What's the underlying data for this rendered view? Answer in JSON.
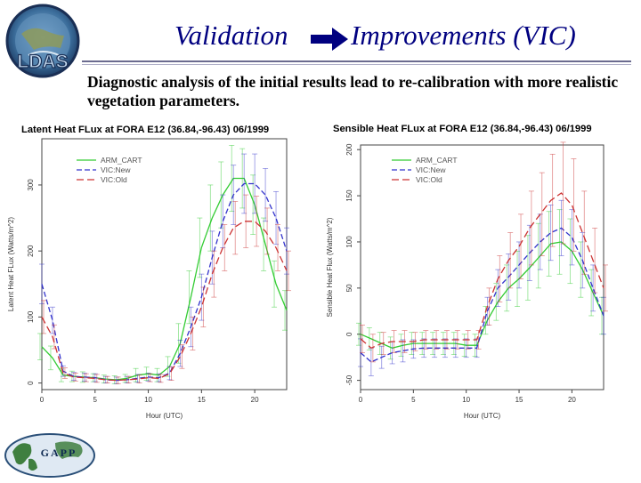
{
  "slide": {
    "title_left": "Validation",
    "title_right": "Improvements (VIC)",
    "subtitle": "Diagnostic analysis of the initial results lead to re-calibration with more realistic vegetation parameters.",
    "logo_ldas_text": "LDAS",
    "logo_gapp_text": "GAPP",
    "colors": {
      "title": "#000080",
      "rule": "#6b6b8f"
    }
  },
  "chart_data": [
    {
      "type": "line",
      "title": "Latent Heat FLux at FORA E12 (36.84,-96.43) 06/1999",
      "xlabel": "Hour (UTC)",
      "ylabel": "Latent Heat FLux (Watts/m^2)",
      "xlim": [
        0,
        23
      ],
      "ylim": [
        -10,
        370
      ],
      "xticks": [
        0,
        5,
        10,
        15,
        20
      ],
      "yticks": [
        0,
        100,
        200,
        300
      ],
      "legend": [
        "ARM_CART",
        "VIC:New",
        "VIC:Old"
      ],
      "x": [
        0,
        1,
        2,
        3,
        4,
        5,
        6,
        7,
        8,
        9,
        10,
        11,
        12,
        13,
        14,
        15,
        16,
        17,
        18,
        19,
        20,
        21,
        22,
        23
      ],
      "series": [
        {
          "name": "ARM_CART",
          "color": "#33cc33",
          "dash": "",
          "values": [
            55,
            38,
            12,
            10,
            9,
            8,
            6,
            5,
            7,
            12,
            14,
            12,
            25,
            60,
            130,
            205,
            250,
            285,
            310,
            310,
            270,
            210,
            150,
            110
          ],
          "err": [
            20,
            18,
            10,
            8,
            8,
            6,
            6,
            6,
            6,
            10,
            10,
            10,
            15,
            30,
            40,
            45,
            50,
            50,
            50,
            45,
            45,
            40,
            35,
            30
          ]
        },
        {
          "name": "VIC:New",
          "color": "#3333cc",
          "dash": "6,3",
          "values": [
            150,
            95,
            18,
            10,
            9,
            8,
            5,
            4,
            5,
            7,
            9,
            8,
            15,
            45,
            85,
            130,
            190,
            245,
            285,
            302,
            302,
            285,
            250,
            200
          ],
          "err": [
            30,
            20,
            8,
            6,
            6,
            6,
            5,
            5,
            5,
            6,
            6,
            6,
            10,
            20,
            30,
            35,
            40,
            40,
            45,
            45,
            45,
            40,
            40,
            35
          ]
        },
        {
          "name": "VIC:Old",
          "color": "#cc3333",
          "dash": "8,4",
          "values": [
            100,
            70,
            15,
            9,
            8,
            7,
            5,
            4,
            5,
            6,
            8,
            7,
            14,
            40,
            75,
            115,
            165,
            205,
            235,
            245,
            245,
            230,
            205,
            170
          ],
          "err": [
            25,
            18,
            8,
            6,
            6,
            6,
            5,
            5,
            5,
            6,
            6,
            6,
            10,
            18,
            25,
            30,
            35,
            35,
            40,
            40,
            38,
            35,
            35,
            30
          ]
        }
      ]
    },
    {
      "type": "line",
      "title": "Sensible Heat FLux at FORA E12 (36.84,-96.43) 06/1999",
      "xlabel": "Hour (UTC)",
      "ylabel": "Sensible Heat Flux (Watts/m^2)",
      "xlim": [
        0,
        23
      ],
      "ylim": [
        -60,
        205
      ],
      "xticks": [
        0,
        5,
        10,
        15,
        20
      ],
      "yticks": [
        -50,
        0,
        50,
        100,
        150,
        200
      ],
      "legend": [
        "ARM_CART",
        "VIC:New",
        "VIC:Old"
      ],
      "x": [
        0,
        1,
        2,
        3,
        4,
        5,
        6,
        7,
        8,
        9,
        10,
        11,
        12,
        13,
        14,
        15,
        16,
        17,
        18,
        19,
        20,
        21,
        22,
        23
      ],
      "series": [
        {
          "name": "ARM_CART",
          "color": "#33cc33",
          "dash": "",
          "values": [
            0,
            -5,
            -10,
            -15,
            -12,
            -10,
            -10,
            -10,
            -10,
            -10,
            -12,
            -12,
            15,
            35,
            50,
            60,
            72,
            85,
            98,
            100,
            90,
            70,
            45,
            20
          ],
          "err": [
            12,
            12,
            12,
            12,
            12,
            12,
            12,
            12,
            12,
            12,
            12,
            12,
            15,
            20,
            25,
            30,
            35,
            35,
            35,
            35,
            35,
            30,
            25,
            20
          ]
        },
        {
          "name": "VIC:New",
          "color": "#3333cc",
          "dash": "6,3",
          "values": [
            -20,
            -30,
            -25,
            -20,
            -18,
            -16,
            -15,
            -15,
            -15,
            -15,
            -15,
            -15,
            25,
            50,
            62,
            75,
            88,
            100,
            110,
            115,
            105,
            80,
            50,
            20
          ],
          "err": [
            15,
            15,
            12,
            12,
            12,
            10,
            10,
            10,
            10,
            10,
            10,
            10,
            15,
            20,
            25,
            25,
            30,
            30,
            30,
            30,
            30,
            30,
            25,
            20
          ]
        },
        {
          "name": "VIC:Old",
          "color": "#cc3333",
          "dash": "8,4",
          "values": [
            -5,
            -15,
            -10,
            -8,
            -8,
            -8,
            -6,
            -6,
            -6,
            -6,
            -6,
            -6,
            30,
            60,
            80,
            95,
            115,
            130,
            145,
            153,
            140,
            110,
            80,
            50
          ],
          "err": [
            15,
            15,
            12,
            12,
            12,
            10,
            10,
            10,
            10,
            10,
            10,
            10,
            20,
            25,
            30,
            35,
            40,
            45,
            50,
            55,
            50,
            45,
            35,
            25
          ]
        }
      ]
    }
  ]
}
